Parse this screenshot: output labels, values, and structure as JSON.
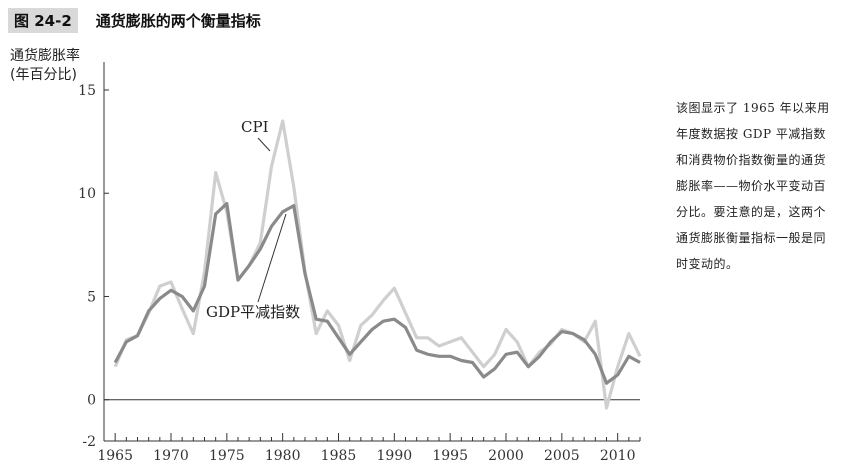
{
  "figure": {
    "number": "图 24-2",
    "title": "通货膨胀的两个衡量指标"
  },
  "note": "该图显示了 1965 年以来用年度数据按 GDP 平减指数和消费物价指数衡量的通货膨胀率——物价水平变动百分比。要注意的是，这两个通货膨胀衡量指标一般是同时变动的。",
  "chart_data": {
    "type": "line",
    "title": "",
    "ylabel": [
      "通货膨胀率",
      "(年百分比)"
    ],
    "xlabel": "",
    "xlim": [
      1964,
      2012
    ],
    "ylim": [
      -2,
      15
    ],
    "xticks": [
      1965,
      1970,
      1975,
      1980,
      1985,
      1990,
      1995,
      2000,
      2005,
      2010
    ],
    "yticks": [
      -2,
      0,
      5,
      10,
      15
    ],
    "x": [
      1965,
      1966,
      1967,
      1968,
      1969,
      1970,
      1971,
      1972,
      1973,
      1974,
      1975,
      1976,
      1977,
      1978,
      1979,
      1980,
      1981,
      1982,
      1983,
      1984,
      1985,
      1986,
      1987,
      1988,
      1989,
      1990,
      1991,
      1992,
      1993,
      1994,
      1995,
      1996,
      1997,
      1998,
      1999,
      2000,
      2001,
      2002,
      2003,
      2004,
      2005,
      2006,
      2007,
      2008,
      2009,
      2010,
      2011,
      2012
    ],
    "series": [
      {
        "name": "CPI",
        "color": "#cfcfcf",
        "values": [
          1.6,
          2.9,
          3.1,
          4.2,
          5.5,
          5.7,
          4.4,
          3.2,
          6.2,
          11.0,
          9.1,
          5.8,
          6.5,
          7.6,
          11.3,
          13.5,
          10.3,
          6.2,
          3.2,
          4.3,
          3.6,
          1.9,
          3.6,
          4.1,
          4.8,
          5.4,
          4.2,
          3.0,
          3.0,
          2.6,
          2.8,
          3.0,
          2.3,
          1.6,
          2.2,
          3.4,
          2.8,
          1.6,
          2.3,
          2.7,
          3.4,
          3.2,
          2.8,
          3.8,
          -0.4,
          1.6,
          3.2,
          2.1
        ]
      },
      {
        "name": "GDP平减指数",
        "color": "#8a8a8a",
        "values": [
          1.8,
          2.8,
          3.1,
          4.3,
          4.9,
          5.3,
          5.0,
          4.3,
          5.5,
          9.0,
          9.5,
          5.8,
          6.5,
          7.3,
          8.4,
          9.1,
          9.4,
          6.1,
          3.9,
          3.8,
          3.0,
          2.2,
          2.8,
          3.4,
          3.8,
          3.9,
          3.5,
          2.4,
          2.2,
          2.1,
          2.1,
          1.9,
          1.8,
          1.1,
          1.5,
          2.2,
          2.3,
          1.6,
          2.1,
          2.8,
          3.3,
          3.2,
          2.9,
          2.2,
          0.8,
          1.2,
          2.1,
          1.8
        ]
      }
    ],
    "annotations": [
      {
        "label": "CPI",
        "x": 1980,
        "y": 13.3
      },
      {
        "label": "GDP平减指数",
        "x": 1980,
        "y": 8.9
      }
    ]
  }
}
